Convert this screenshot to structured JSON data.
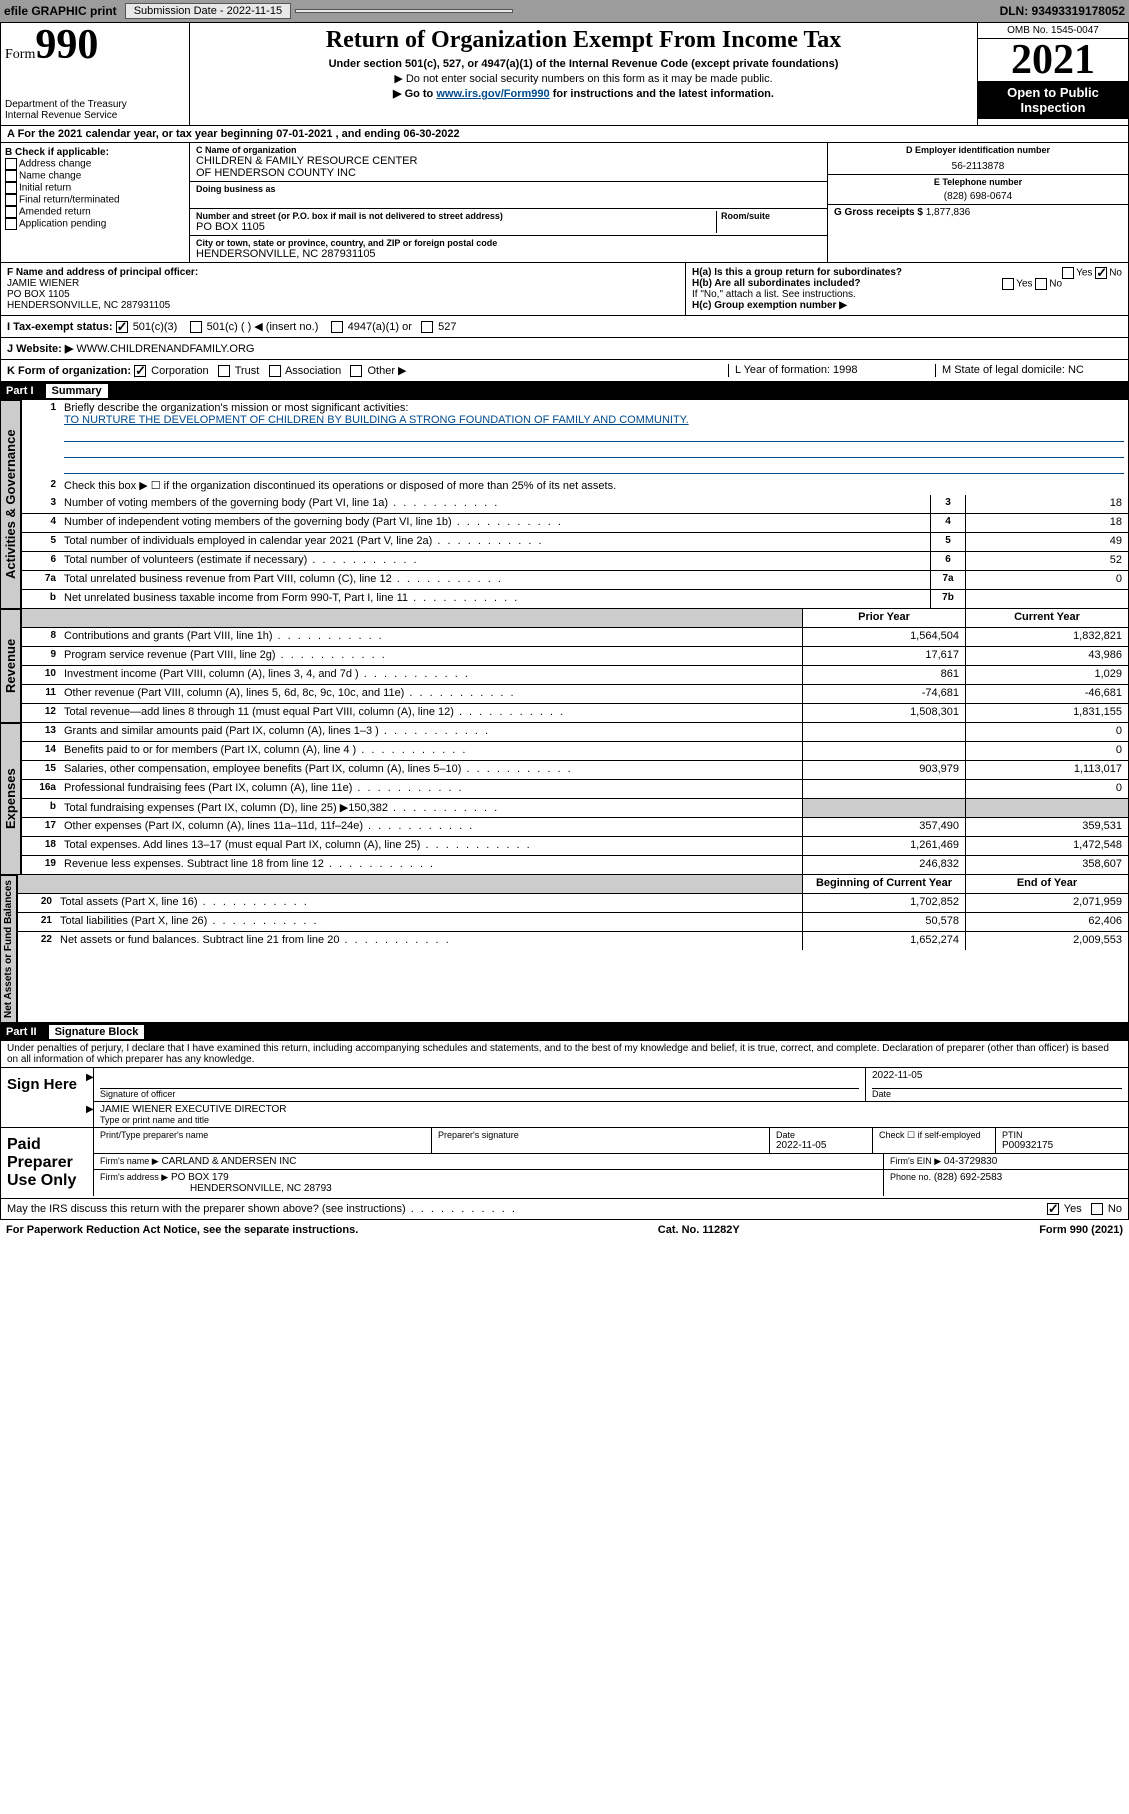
{
  "topbar": {
    "efile": "efile GRAPHIC print",
    "submission": "Submission Date - 2022-11-15",
    "dln": "DLN: 93493319178052"
  },
  "header": {
    "form_word": "Form",
    "form_num": "990",
    "dept": "Department of the Treasury",
    "irs": "Internal Revenue Service",
    "title": "Return of Organization Exempt From Income Tax",
    "sub": "Under section 501(c), 527, or 4947(a)(1) of the Internal Revenue Code (except private foundations)",
    "note1": "▶ Do not enter social security numbers on this form as it may be made public.",
    "note2_pre": "▶ Go to ",
    "note2_link": "www.irs.gov/Form990",
    "note2_post": " for instructions and the latest information.",
    "omb": "OMB No. 1545-0047",
    "year": "2021",
    "open": "Open to Public Inspection"
  },
  "rowA": "A For the 2021 calendar year, or tax year beginning 07-01-2021   , and ending 06-30-2022",
  "colB": {
    "title": "B Check if applicable:",
    "items": [
      "Address change",
      "Name change",
      "Initial return",
      "Final return/terminated",
      "Amended return",
      "Application pending"
    ]
  },
  "colC": {
    "name_lab": "C Name of organization",
    "name1": "CHILDREN & FAMILY RESOURCE CENTER",
    "name2": "OF HENDERSON COUNTY INC",
    "dba_lab": "Doing business as",
    "addr_lab": "Number and street (or P.O. box if mail is not delivered to street address)",
    "room_lab": "Room/suite",
    "addr": "PO BOX 1105",
    "city_lab": "City or town, state or province, country, and ZIP or foreign postal code",
    "city": "HENDERSONVILLE, NC  287931105"
  },
  "colD": {
    "d_lab": "D Employer identification number",
    "d_val": "56-2113878",
    "e_lab": "E Telephone number",
    "e_val": "(828) 698-0674",
    "g_lab": "G Gross receipts $",
    "g_val": "1,877,836"
  },
  "rowF": {
    "f_lab": "F Name and address of principal officer:",
    "f_name": "JAMIE WIENER",
    "f_addr1": "PO BOX 1105",
    "f_addr2": "HENDERSONVILLE, NC  287931105",
    "ha": "H(a)  Is this a group return for subordinates?",
    "hb": "H(b)  Are all subordinates included?",
    "hb_note": "If \"No,\" attach a list. See instructions.",
    "hc": "H(c)  Group exemption number ▶",
    "yes": "Yes",
    "no": "No"
  },
  "rowI": {
    "label": "I  Tax-exempt status:",
    "o1": "501(c)(3)",
    "o2": "501(c) (    ) ◀ (insert no.)",
    "o3": "4947(a)(1) or",
    "o4": "527"
  },
  "rowJ": {
    "label": "J  Website: ▶",
    "val": "WWW.CHILDRENANDFAMILY.ORG"
  },
  "rowK": {
    "label": "K Form of organization:",
    "o1": "Corporation",
    "o2": "Trust",
    "o3": "Association",
    "o4": "Other ▶",
    "l": "L Year of formation: 1998",
    "m": "M State of legal domicile: NC"
  },
  "part1": {
    "num": "Part I",
    "title": "Summary"
  },
  "summary": {
    "l1_lab": "Briefly describe the organization's mission or most significant activities:",
    "l1_val": "TO NURTURE THE DEVELOPMENT OF CHILDREN BY BUILDING A STRONG FOUNDATION OF FAMILY AND COMMUNITY.",
    "l2": "Check this box ▶ ☐  if the organization discontinued its operations or disposed of more than 25% of its net assets.",
    "rows_a": [
      {
        "n": "3",
        "d": "Number of voting members of the governing body (Part VI, line 1a)",
        "box": "3",
        "v": "18"
      },
      {
        "n": "4",
        "d": "Number of independent voting members of the governing body (Part VI, line 1b)",
        "box": "4",
        "v": "18"
      },
      {
        "n": "5",
        "d": "Total number of individuals employed in calendar year 2021 (Part V, line 2a)",
        "box": "5",
        "v": "49"
      },
      {
        "n": "6",
        "d": "Total number of volunteers (estimate if necessary)",
        "box": "6",
        "v": "52"
      },
      {
        "n": "7a",
        "d": "Total unrelated business revenue from Part VIII, column (C), line 12",
        "box": "7a",
        "v": "0"
      },
      {
        "n": "b",
        "d": "Net unrelated business taxable income from Form 990-T, Part I, line 11",
        "box": "7b",
        "v": ""
      }
    ],
    "hdr_prior": "Prior Year",
    "hdr_curr": "Current Year",
    "rev": [
      {
        "n": "8",
        "d": "Contributions and grants (Part VIII, line 1h)",
        "p": "1,564,504",
        "c": "1,832,821"
      },
      {
        "n": "9",
        "d": "Program service revenue (Part VIII, line 2g)",
        "p": "17,617",
        "c": "43,986"
      },
      {
        "n": "10",
        "d": "Investment income (Part VIII, column (A), lines 3, 4, and 7d )",
        "p": "861",
        "c": "1,029"
      },
      {
        "n": "11",
        "d": "Other revenue (Part VIII, column (A), lines 5, 6d, 8c, 9c, 10c, and 11e)",
        "p": "-74,681",
        "c": "-46,681"
      },
      {
        "n": "12",
        "d": "Total revenue—add lines 8 through 11 (must equal Part VIII, column (A), line 12)",
        "p": "1,508,301",
        "c": "1,831,155"
      }
    ],
    "exp": [
      {
        "n": "13",
        "d": "Grants and similar amounts paid (Part IX, column (A), lines 1–3 )",
        "p": "",
        "c": "0"
      },
      {
        "n": "14",
        "d": "Benefits paid to or for members (Part IX, column (A), line 4 )",
        "p": "",
        "c": "0"
      },
      {
        "n": "15",
        "d": "Salaries, other compensation, employee benefits (Part IX, column (A), lines 5–10)",
        "p": "903,979",
        "c": "1,113,017"
      },
      {
        "n": "16a",
        "d": "Professional fundraising fees (Part IX, column (A), line 11e)",
        "p": "",
        "c": "0"
      },
      {
        "n": "b",
        "d": "Total fundraising expenses (Part IX, column (D), line 25) ▶150,382",
        "p": "shade",
        "c": "shade"
      },
      {
        "n": "17",
        "d": "Other expenses (Part IX, column (A), lines 11a–11d, 11f–24e)",
        "p": "357,490",
        "c": "359,531"
      },
      {
        "n": "18",
        "d": "Total expenses. Add lines 13–17 (must equal Part IX, column (A), line 25)",
        "p": "1,261,469",
        "c": "1,472,548"
      },
      {
        "n": "19",
        "d": "Revenue less expenses. Subtract line 18 from line 12",
        "p": "246,832",
        "c": "358,607"
      }
    ],
    "hdr_beg": "Beginning of Current Year",
    "hdr_end": "End of Year",
    "net": [
      {
        "n": "20",
        "d": "Total assets (Part X, line 16)",
        "p": "1,702,852",
        "c": "2,071,959"
      },
      {
        "n": "21",
        "d": "Total liabilities (Part X, line 26)",
        "p": "50,578",
        "c": "62,406"
      },
      {
        "n": "22",
        "d": "Net assets or fund balances. Subtract line 21 from line 20",
        "p": "1,652,274",
        "c": "2,009,553"
      }
    ]
  },
  "tabs": {
    "t1": "Activities & Governance",
    "t2": "Revenue",
    "t3": "Expenses",
    "t4": "Net Assets or Fund Balances"
  },
  "part2": {
    "num": "Part II",
    "title": "Signature Block"
  },
  "jurat": "Under penalties of perjury, I declare that I have examined this return, including accompanying schedules and statements, and to the best of my knowledge and belief, it is true, correct, and complete. Declaration of preparer (other than officer) is based on all information of which preparer has any knowledge.",
  "sign": {
    "here": "Sign Here",
    "sig_officer": "Signature of officer",
    "date": "Date",
    "date_val": "2022-11-05",
    "name_title": "JAMIE WIENER  EXECUTIVE DIRECTOR",
    "name_lab": "Type or print name and title"
  },
  "paid": {
    "title": "Paid Preparer Use Only",
    "h1": "Print/Type preparer's name",
    "h2": "Preparer's signature",
    "h3": "Date",
    "h3v": "2022-11-05",
    "h4": "Check ☐ if self-employed",
    "h5": "PTIN",
    "h5v": "P00932175",
    "firm_lab": "Firm's name   ▶",
    "firm": "CARLAND & ANDERSEN INC",
    "ein_lab": "Firm's EIN ▶",
    "ein": "04-3729830",
    "addr_lab": "Firm's address ▶",
    "addr1": "PO BOX 179",
    "addr2": "HENDERSONVILLE, NC  28793",
    "phone_lab": "Phone no.",
    "phone": "(828) 692-2583"
  },
  "may_discuss": "May the IRS discuss this return with the preparer shown above? (see instructions)",
  "footer": {
    "l": "For Paperwork Reduction Act Notice, see the separate instructions.",
    "m": "Cat. No. 11282Y",
    "r": "Form 990 (2021)"
  }
}
